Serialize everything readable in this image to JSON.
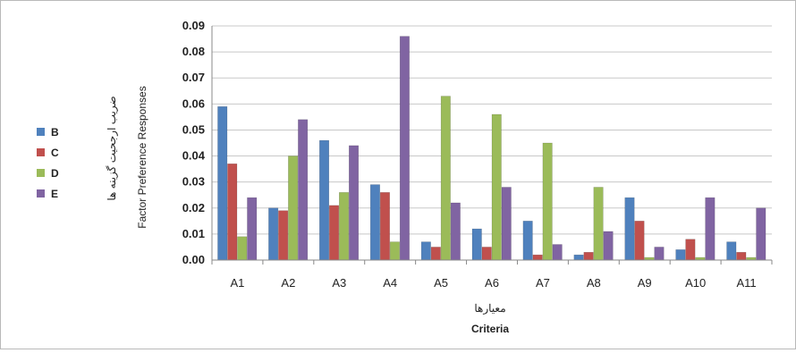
{
  "chart_data": {
    "type": "bar",
    "categories": [
      "A1",
      "A2",
      "A3",
      "A4",
      "A5",
      "A6",
      "A7",
      "A8",
      "A9",
      "A10",
      "A11"
    ],
    "series": [
      {
        "name": "B",
        "color": "#4f81bd",
        "values": [
          0.059,
          0.02,
          0.046,
          0.029,
          0.007,
          0.012,
          0.015,
          0.002,
          0.024,
          0.004,
          0.007
        ]
      },
      {
        "name": "C",
        "color": "#c0504d",
        "values": [
          0.037,
          0.019,
          0.021,
          0.026,
          0.005,
          0.005,
          0.002,
          0.003,
          0.015,
          0.008,
          0.003
        ]
      },
      {
        "name": "D",
        "color": "#9bbb59",
        "values": [
          0.009,
          0.04,
          0.026,
          0.007,
          0.063,
          0.056,
          0.045,
          0.028,
          0.001,
          0.001,
          0.001
        ]
      },
      {
        "name": "E",
        "color": "#8064a2",
        "values": [
          0.024,
          0.054,
          0.044,
          0.086,
          0.022,
          0.028,
          0.006,
          0.011,
          0.005,
          0.024,
          0.02
        ]
      }
    ],
    "yticks": [
      "0.00",
      "0.01",
      "0.02",
      "0.03",
      "0.04",
      "0.05",
      "0.06",
      "0.07",
      "0.08",
      "0.09"
    ],
    "ylim": [
      0,
      0.09
    ],
    "ylabel_persian": "ضریب ارجحیت گزینه ها",
    "ylabel": "Factor Preference Responses",
    "xlabel_persian": "معیارها",
    "xlabel": "Criteria",
    "grid": true,
    "legend_position": "left"
  }
}
